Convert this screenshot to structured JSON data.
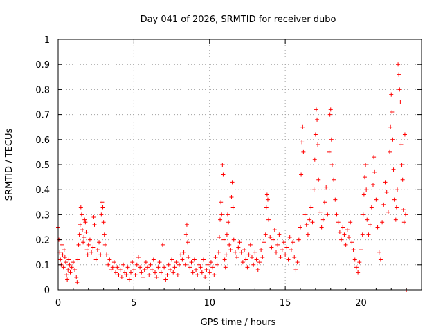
{
  "chart_data": {
    "type": "scatter",
    "title": "Day 041 of 2026, SRMTID for receiver dubo",
    "xlabel": "GPS time / hours",
    "ylabel": "SRMTID / TECUs",
    "xlim": [
      0,
      24
    ],
    "ylim": [
      0,
      1
    ],
    "x_ticks": [
      0,
      5,
      10,
      15,
      20
    ],
    "x_tick_labels": [
      "0",
      "5",
      "10",
      "15",
      "20"
    ],
    "y_ticks": [
      0,
      0.1,
      0.2,
      0.3,
      0.4,
      0.5,
      0.6,
      0.7,
      0.8,
      0.9,
      1
    ],
    "y_tick_labels": [
      "0",
      "0.1",
      "0.2",
      "0.3",
      "0.4",
      "0.5",
      "0.6",
      "0.7",
      "0.8",
      "0.9",
      "1"
    ],
    "grid": true,
    "marker": "plus",
    "color": "#ff0000",
    "series": [
      {
        "name": "SRMTID",
        "points": [
          [
            0.0,
            0.25
          ],
          [
            0.05,
            0.2
          ],
          [
            0.1,
            0.15
          ],
          [
            0.15,
            0.12
          ],
          [
            0.2,
            0.1
          ],
          [
            0.25,
            0.18
          ],
          [
            0.3,
            0.14
          ],
          [
            0.35,
            0.09
          ],
          [
            0.4,
            0.16
          ],
          [
            0.45,
            0.13
          ],
          [
            0.5,
            0.11
          ],
          [
            0.55,
            0.06
          ],
          [
            0.6,
            0.04
          ],
          [
            0.65,
            0.08
          ],
          [
            0.7,
            0.12
          ],
          [
            0.75,
            0.1
          ],
          [
            0.8,
            0.07
          ],
          [
            0.9,
            0.09
          ],
          [
            1.0,
            0.11
          ],
          [
            1.1,
            0.08
          ],
          [
            1.2,
            0.05
          ],
          [
            1.25,
            0.03
          ],
          [
            1.3,
            0.12
          ],
          [
            1.35,
            0.18
          ],
          [
            1.4,
            0.22
          ],
          [
            1.45,
            0.26
          ],
          [
            1.5,
            0.33
          ],
          [
            1.55,
            0.3
          ],
          [
            1.6,
            0.24
          ],
          [
            1.65,
            0.19
          ],
          [
            1.7,
            0.21
          ],
          [
            1.75,
            0.28
          ],
          [
            1.8,
            0.27
          ],
          [
            1.85,
            0.23
          ],
          [
            1.9,
            0.16
          ],
          [
            1.95,
            0.14
          ],
          [
            2.0,
            0.18
          ],
          [
            2.1,
            0.2
          ],
          [
            2.2,
            0.15
          ],
          [
            2.3,
            0.17
          ],
          [
            2.35,
            0.29
          ],
          [
            2.4,
            0.26
          ],
          [
            2.5,
            0.12
          ],
          [
            2.6,
            0.16
          ],
          [
            2.7,
            0.19
          ],
          [
            2.8,
            0.14
          ],
          [
            2.85,
            0.3
          ],
          [
            2.9,
            0.35
          ],
          [
            2.95,
            0.33
          ],
          [
            3.0,
            0.27
          ],
          [
            3.05,
            0.22
          ],
          [
            3.1,
            0.18
          ],
          [
            3.2,
            0.14
          ],
          [
            3.3,
            0.1
          ],
          [
            3.4,
            0.12
          ],
          [
            3.5,
            0.08
          ],
          [
            3.6,
            0.09
          ],
          [
            3.7,
            0.11
          ],
          [
            3.8,
            0.07
          ],
          [
            3.9,
            0.09
          ],
          [
            4.0,
            0.06
          ],
          [
            4.1,
            0.08
          ],
          [
            4.2,
            0.05
          ],
          [
            4.3,
            0.1
          ],
          [
            4.4,
            0.07
          ],
          [
            4.5,
            0.06
          ],
          [
            4.6,
            0.09
          ],
          [
            4.7,
            0.04
          ],
          [
            4.8,
            0.07
          ],
          [
            4.9,
            0.11
          ],
          [
            5.0,
            0.08
          ],
          [
            5.1,
            0.06
          ],
          [
            5.2,
            0.1
          ],
          [
            5.3,
            0.13
          ],
          [
            5.4,
            0.09
          ],
          [
            5.5,
            0.07
          ],
          [
            5.6,
            0.05
          ],
          [
            5.7,
            0.08
          ],
          [
            5.8,
            0.11
          ],
          [
            5.9,
            0.09
          ],
          [
            6.0,
            0.06
          ],
          [
            6.1,
            0.1
          ],
          [
            6.2,
            0.08
          ],
          [
            6.3,
            0.12
          ],
          [
            6.4,
            0.07
          ],
          [
            6.5,
            0.05
          ],
          [
            6.6,
            0.09
          ],
          [
            6.7,
            0.11
          ],
          [
            6.8,
            0.07
          ],
          [
            6.9,
            0.18
          ],
          [
            7.0,
            0.09
          ],
          [
            7.1,
            0.04
          ],
          [
            7.2,
            0.06
          ],
          [
            7.3,
            0.1
          ],
          [
            7.4,
            0.08
          ],
          [
            7.5,
            0.12
          ],
          [
            7.6,
            0.07
          ],
          [
            7.7,
            0.09
          ],
          [
            7.8,
            0.11
          ],
          [
            7.9,
            0.06
          ],
          [
            8.0,
            0.1
          ],
          [
            8.1,
            0.14
          ],
          [
            8.2,
            0.12
          ],
          [
            8.3,
            0.15
          ],
          [
            8.4,
            0.1
          ],
          [
            8.45,
            0.22
          ],
          [
            8.5,
            0.26
          ],
          [
            8.55,
            0.19
          ],
          [
            8.6,
            0.13
          ],
          [
            8.7,
            0.09
          ],
          [
            8.8,
            0.11
          ],
          [
            8.9,
            0.07
          ],
          [
            9.0,
            0.12
          ],
          [
            9.1,
            0.08
          ],
          [
            9.2,
            0.06
          ],
          [
            9.3,
            0.1
          ],
          [
            9.4,
            0.09
          ],
          [
            9.5,
            0.07
          ],
          [
            9.6,
            0.12
          ],
          [
            9.7,
            0.05
          ],
          [
            9.8,
            0.08
          ],
          [
            9.9,
            0.1
          ],
          [
            10.0,
            0.07
          ],
          [
            10.1,
            0.11
          ],
          [
            10.2,
            0.09
          ],
          [
            10.3,
            0.06
          ],
          [
            10.4,
            0.13
          ],
          [
            10.5,
            0.1
          ],
          [
            10.6,
            0.15
          ],
          [
            10.65,
            0.21
          ],
          [
            10.7,
            0.28
          ],
          [
            10.75,
            0.35
          ],
          [
            10.8,
            0.3
          ],
          [
            10.85,
            0.5
          ],
          [
            10.9,
            0.46
          ],
          [
            10.95,
            0.2
          ],
          [
            11.0,
            0.12
          ],
          [
            11.05,
            0.09
          ],
          [
            11.1,
            0.14
          ],
          [
            11.15,
            0.22
          ],
          [
            11.2,
            0.3
          ],
          [
            11.25,
            0.27
          ],
          [
            11.3,
            0.18
          ],
          [
            11.4,
            0.16
          ],
          [
            11.45,
            0.37
          ],
          [
            11.5,
            0.43
          ],
          [
            11.55,
            0.33
          ],
          [
            11.6,
            0.2
          ],
          [
            11.7,
            0.15
          ],
          [
            11.8,
            0.13
          ],
          [
            11.9,
            0.17
          ],
          [
            12.0,
            0.19
          ],
          [
            12.1,
            0.15
          ],
          [
            12.2,
            0.11
          ],
          [
            12.3,
            0.16
          ],
          [
            12.4,
            0.12
          ],
          [
            12.5,
            0.09
          ],
          [
            12.6,
            0.14
          ],
          [
            12.7,
            0.18
          ],
          [
            12.8,
            0.13
          ],
          [
            12.9,
            0.1
          ],
          [
            13.0,
            0.15
          ],
          [
            13.1,
            0.12
          ],
          [
            13.2,
            0.08
          ],
          [
            13.3,
            0.11
          ],
          [
            13.4,
            0.16
          ],
          [
            13.5,
            0.13
          ],
          [
            13.6,
            0.19
          ],
          [
            13.7,
            0.22
          ],
          [
            13.75,
            0.33
          ],
          [
            13.8,
            0.38
          ],
          [
            13.85,
            0.36
          ],
          [
            13.9,
            0.28
          ],
          [
            14.0,
            0.21
          ],
          [
            14.1,
            0.17
          ],
          [
            14.2,
            0.2
          ],
          [
            14.3,
            0.24
          ],
          [
            14.4,
            0.15
          ],
          [
            14.5,
            0.18
          ],
          [
            14.6,
            0.22
          ],
          [
            14.7,
            0.13
          ],
          [
            14.8,
            0.16
          ],
          [
            14.9,
            0.19
          ],
          [
            15.0,
            0.14
          ],
          [
            15.1,
            0.17
          ],
          [
            15.2,
            0.12
          ],
          [
            15.3,
            0.21
          ],
          [
            15.4,
            0.16
          ],
          [
            15.5,
            0.19
          ],
          [
            15.6,
            0.13
          ],
          [
            15.7,
            0.08
          ],
          [
            15.8,
            0.11
          ],
          [
            15.9,
            0.2
          ],
          [
            16.0,
            0.25
          ],
          [
            16.05,
            0.46
          ],
          [
            16.1,
            0.59
          ],
          [
            16.15,
            0.65
          ],
          [
            16.2,
            0.55
          ],
          [
            16.3,
            0.3
          ],
          [
            16.4,
            0.26
          ],
          [
            16.5,
            0.22
          ],
          [
            16.6,
            0.28
          ],
          [
            16.7,
            0.33
          ],
          [
            16.8,
            0.27
          ],
          [
            16.9,
            0.4
          ],
          [
            16.95,
            0.52
          ],
          [
            17.0,
            0.62
          ],
          [
            17.05,
            0.72
          ],
          [
            17.1,
            0.68
          ],
          [
            17.15,
            0.58
          ],
          [
            17.2,
            0.44
          ],
          [
            17.3,
            0.31
          ],
          [
            17.4,
            0.25
          ],
          [
            17.5,
            0.28
          ],
          [
            17.6,
            0.35
          ],
          [
            17.7,
            0.41
          ],
          [
            17.8,
            0.3
          ],
          [
            17.9,
            0.55
          ],
          [
            17.95,
            0.7
          ],
          [
            18.0,
            0.72
          ],
          [
            18.05,
            0.6
          ],
          [
            18.1,
            0.5
          ],
          [
            18.2,
            0.44
          ],
          [
            18.3,
            0.36
          ],
          [
            18.4,
            0.3
          ],
          [
            18.5,
            0.27
          ],
          [
            18.6,
            0.23
          ],
          [
            18.7,
            0.2
          ],
          [
            18.8,
            0.25
          ],
          [
            18.9,
            0.22
          ],
          [
            19.0,
            0.18
          ],
          [
            19.1,
            0.24
          ],
          [
            19.2,
            0.21
          ],
          [
            19.3,
            0.27
          ],
          [
            19.4,
            0.19
          ],
          [
            19.5,
            0.16
          ],
          [
            19.6,
            0.12
          ],
          [
            19.7,
            0.09
          ],
          [
            19.8,
            0.07
          ],
          [
            19.9,
            0.11
          ],
          [
            20.0,
            0.16
          ],
          [
            20.1,
            0.22
          ],
          [
            20.15,
            0.3
          ],
          [
            20.2,
            0.38
          ],
          [
            20.25,
            0.45
          ],
          [
            20.3,
            0.5
          ],
          [
            20.35,
            0.4
          ],
          [
            20.4,
            0.28
          ],
          [
            20.5,
            0.22
          ],
          [
            20.6,
            0.26
          ],
          [
            20.7,
            0.33
          ],
          [
            20.8,
            0.42
          ],
          [
            20.85,
            0.53
          ],
          [
            20.9,
            0.47
          ],
          [
            21.0,
            0.36
          ],
          [
            21.1,
            0.25
          ],
          [
            21.2,
            0.15
          ],
          [
            21.3,
            0.12
          ],
          [
            21.4,
            0.27
          ],
          [
            21.5,
            0.34
          ],
          [
            21.6,
            0.43
          ],
          [
            21.7,
            0.39
          ],
          [
            21.8,
            0.31
          ],
          [
            21.9,
            0.55
          ],
          [
            21.95,
            0.65
          ],
          [
            22.0,
            0.78
          ],
          [
            22.05,
            0.71
          ],
          [
            22.1,
            0.6
          ],
          [
            22.15,
            0.48
          ],
          [
            22.2,
            0.36
          ],
          [
            22.3,
            0.28
          ],
          [
            22.35,
            0.33
          ],
          [
            22.4,
            0.4
          ],
          [
            22.45,
            0.9
          ],
          [
            22.5,
            0.86
          ],
          [
            22.55,
            0.8
          ],
          [
            22.6,
            0.75
          ],
          [
            22.65,
            0.58
          ],
          [
            22.7,
            0.5
          ],
          [
            22.75,
            0.44
          ],
          [
            22.8,
            0.32
          ],
          [
            22.85,
            0.27
          ],
          [
            22.9,
            0.62
          ],
          [
            22.95,
            0.3
          ],
          [
            23.0,
            0.0
          ]
        ]
      }
    ]
  }
}
